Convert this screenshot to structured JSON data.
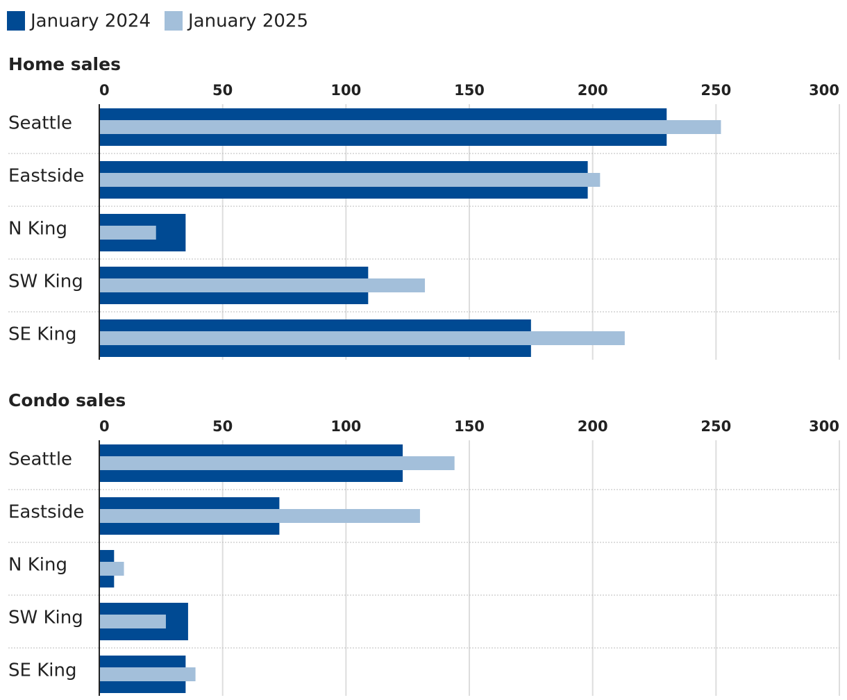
{
  "chart_data": [
    {
      "type": "bar",
      "orientation": "horizontal",
      "title": "Home sales",
      "categories": [
        "Seattle",
        "Eastside",
        "N King",
        "SW King",
        "SE King"
      ],
      "series": [
        {
          "name": "January 2024",
          "color": "#004a93",
          "values": [
            230,
            198,
            35,
            109,
            175
          ]
        },
        {
          "name": "January 2025",
          "color": "#a3bfda",
          "values": [
            252,
            203,
            23,
            132,
            213
          ]
        }
      ],
      "xlim": [
        0,
        300
      ],
      "xticks": [
        0,
        50,
        100,
        150,
        200,
        250,
        300
      ],
      "grid": true,
      "legend": "top-left"
    },
    {
      "type": "bar",
      "orientation": "horizontal",
      "title": "Condo sales",
      "categories": [
        "Seattle",
        "Eastside",
        "N King",
        "SW King",
        "SE King"
      ],
      "series": [
        {
          "name": "January 2024",
          "color": "#004a93",
          "values": [
            123,
            73,
            6,
            36,
            35
          ]
        },
        {
          "name": "January 2025",
          "color": "#a3bfda",
          "values": [
            144,
            130,
            10,
            27,
            39
          ]
        }
      ],
      "xlim": [
        0,
        300
      ],
      "xticks": [
        0,
        50,
        100,
        150,
        200,
        250,
        300
      ],
      "grid": true
    }
  ]
}
